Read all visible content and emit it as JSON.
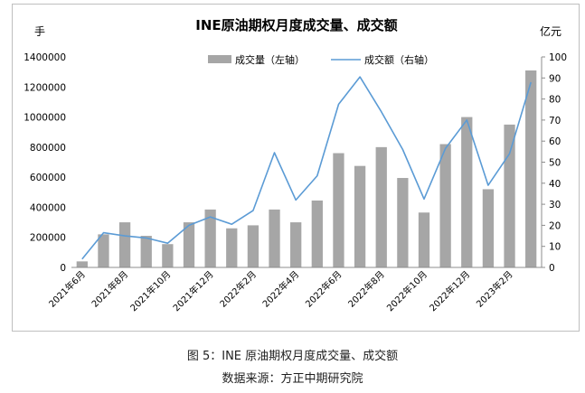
{
  "caption": {
    "line1": "图 5：INE 原油期权月度成交量、成交额",
    "line2": "数据来源：方正中期研究院"
  },
  "chart_data": {
    "type": "bar+line",
    "title": "INE原油期权月度成交量、成交额",
    "left_unit": "手",
    "right_unit": "亿元",
    "categories": [
      "2021年6月",
      "2021年7月",
      "2021年8月",
      "2021年9月",
      "2021年10月",
      "2021年11月",
      "2021年12月",
      "2022年1月",
      "2022年2月",
      "2022年3月",
      "2022年4月",
      "2022年5月",
      "2022年6月",
      "2022年7月",
      "2022年8月",
      "2022年9月",
      "2022年10月",
      "2022年11月",
      "2022年12月",
      "2023年1月",
      "2023年2月",
      "2023年3月"
    ],
    "x_tick_labels": [
      "2021年6月",
      "2021年8月",
      "2021年10月",
      "2021年12月",
      "2022年2月",
      "2022年4月",
      "2022年6月",
      "2022年8月",
      "2022年10月",
      "2022年12月",
      "2023年2月"
    ],
    "series": [
      {
        "name": "成交量（左轴）",
        "type": "bar",
        "axis": "left",
        "color": "#a6a6a6",
        "values": [
          40000,
          220000,
          300000,
          210000,
          155000,
          300000,
          385000,
          260000,
          280000,
          385000,
          300000,
          445000,
          760000,
          675000,
          800000,
          595000,
          365000,
          820000,
          1000000,
          520000,
          950000,
          1310000
        ]
      },
      {
        "name": "成交额（右轴）",
        "type": "line",
        "axis": "right",
        "color": "#5b9bd5",
        "values": [
          4,
          16.5,
          15,
          14,
          11.5,
          20,
          24,
          20.5,
          27,
          54.5,
          32,
          43.5,
          77.5,
          90.5,
          74,
          56,
          32.5,
          56.5,
          70,
          39,
          54,
          88
        ]
      }
    ],
    "left_axis": {
      "min": 0,
      "max": 1400000,
      "step": 200000,
      "ticks": [
        "0",
        "200000",
        "400000",
        "600000",
        "800000",
        "1000000",
        "1200000",
        "1400000"
      ]
    },
    "right_axis": {
      "min": 0,
      "max": 100,
      "step": 10,
      "ticks": [
        "0",
        "10",
        "20",
        "30",
        "40",
        "50",
        "60",
        "70",
        "80",
        "90",
        "100"
      ]
    },
    "grid": false,
    "legend_position": "top-center"
  }
}
